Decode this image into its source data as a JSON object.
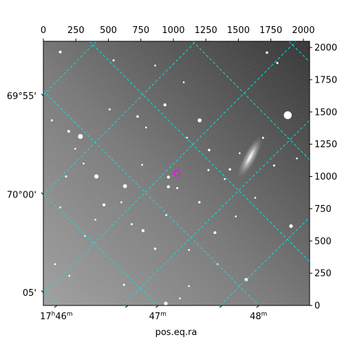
{
  "chart_data": {
    "type": "astronomical-image",
    "title": "",
    "xlabel": "pos.eq.ra",
    "ylabel": "",
    "pixel_axes": {
      "x": {
        "range": [
          0,
          2048
        ],
        "ticks": [
          0,
          250,
          500,
          750,
          1000,
          1250,
          1500,
          1750,
          2000
        ],
        "tick_labels": [
          "0",
          "250",
          "500",
          "750",
          "1000",
          "1250",
          "1500",
          "1750",
          "2000"
        ]
      },
      "y": {
        "range": [
          0,
          2048
        ],
        "ticks": [
          0,
          250,
          500,
          750,
          1000,
          1250,
          1500,
          1750,
          2000
        ],
        "tick_labels": [
          "0",
          "250",
          "500",
          "750",
          "1000",
          "1250",
          "1500",
          "1750",
          "2000"
        ]
      }
    },
    "world_axes": {
      "ra": {
        "ticks": [
          {
            "label_pre": "17",
            "label_pre_sup": "h",
            "label_main": "46",
            "label_sup": "m",
            "x_pix": 100
          },
          {
            "label_pre": "",
            "label_pre_sup": "",
            "label_main": "47",
            "label_sup": "m",
            "x_pix": 880
          },
          {
            "label_pre": "",
            "label_pre_sup": "",
            "label_main": "48",
            "label_sup": "m",
            "x_pix": 1655
          }
        ]
      },
      "dec": {
        "ticks": [
          {
            "label": "69°55'",
            "y_pix": 1625
          },
          {
            "label": "70°00'",
            "y_pix": 860
          },
          {
            "label": "05'",
            "y_pix": 100
          }
        ]
      }
    },
    "grid": true,
    "grid_color": "#00e5e5",
    "image": {
      "colormap": "gray",
      "galaxy": {
        "x": 1590,
        "y": 1150,
        "major": 150,
        "minor": 38,
        "angle_deg": -62
      },
      "marker": {
        "x": 1028,
        "y": 1025,
        "color": "#ff00ff",
        "shape": "circle"
      },
      "stars": [
        [
          1880,
          1475,
          2.6
        ],
        [
          285,
          1310,
          1.6
        ],
        [
          1202,
          1435,
          1.3
        ],
        [
          935,
          1555,
          1.0
        ],
        [
          408,
          1000,
          1.4
        ],
        [
          628,
          925,
          1.3
        ],
        [
          962,
          995,
          1.0
        ],
        [
          962,
          920,
          1.0
        ],
        [
          466,
          780,
          1.0
        ],
        [
          1905,
          615,
          1.2
        ],
        [
          767,
          580,
          1.0
        ],
        [
          1560,
          200,
          1.1
        ],
        [
          942,
          15,
          1.2
        ],
        [
          130,
          1965,
          0.9
        ],
        [
          1720,
          1960,
          0.8
        ],
        [
          195,
          1350,
          0.9
        ],
        [
          1275,
          1205,
          0.8
        ],
        [
          1200,
          800,
          0.8
        ],
        [
          1320,
          565,
          0.9
        ],
        [
          620,
          160,
          0.7
        ],
        [
          540,
          1900,
          0.7
        ],
        [
          1435,
          1055,
          0.8
        ],
        [
          725,
          1465,
          0.8
        ],
        [
          65,
          1435,
          0.7
        ],
        [
          1800,
          1880,
          0.7
        ],
        [
          175,
          1000,
          0.7
        ],
        [
          1030,
          910,
          0.7
        ],
        [
          510,
          1520,
          0.7
        ],
        [
          1690,
          1300,
          0.7
        ],
        [
          1270,
          1050,
          0.7
        ],
        [
          1775,
          1085,
          0.7
        ],
        [
          860,
          440,
          0.8
        ],
        [
          1105,
          1300,
          0.6
        ],
        [
          310,
          1100,
          0.6
        ],
        [
          790,
          1380,
          0.6
        ],
        [
          1120,
          430,
          0.6
        ],
        [
          1080,
          1730,
          0.6
        ],
        [
          1395,
          980,
          0.6
        ],
        [
          945,
          700,
          0.6
        ],
        [
          680,
          630,
          0.7
        ],
        [
          1510,
          1180,
          0.6
        ],
        [
          400,
          665,
          0.6
        ],
        [
          600,
          800,
          0.6
        ],
        [
          245,
          1215,
          0.6
        ],
        [
          1630,
          835,
          0.6
        ],
        [
          860,
          1860,
          0.6
        ],
        [
          1340,
          320,
          0.6
        ],
        [
          200,
          230,
          0.6
        ],
        [
          1050,
          55,
          0.6
        ],
        [
          760,
          1090,
          0.6
        ],
        [
          1480,
          690,
          0.6
        ],
        [
          90,
          320,
          0.6
        ],
        [
          320,
          540,
          0.6
        ],
        [
          1950,
          1140,
          0.6
        ],
        [
          130,
          760,
          0.6
        ],
        [
          1120,
          150,
          0.6
        ]
      ]
    }
  }
}
